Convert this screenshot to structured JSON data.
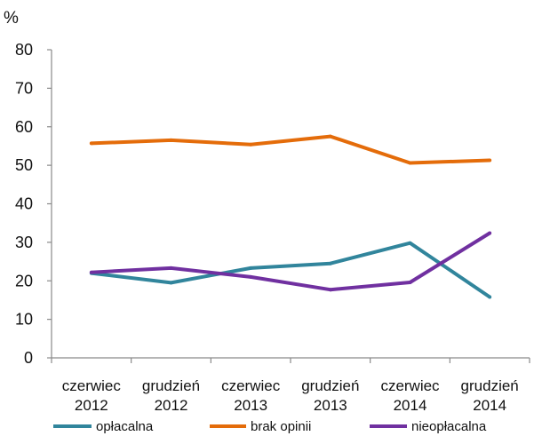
{
  "chart_data": {
    "type": "line",
    "ylabel": "%",
    "ylim": [
      0,
      80
    ],
    "yticks": [
      0,
      10,
      20,
      30,
      40,
      50,
      60,
      70,
      80
    ],
    "grid": false,
    "legend": "bottom",
    "categories": [
      [
        "czerwiec",
        "2012"
      ],
      [
        "grudzień",
        "2012"
      ],
      [
        "czerwiec",
        "2013"
      ],
      [
        "grudzień",
        "2013"
      ],
      [
        "czerwiec",
        "2014"
      ],
      [
        "grudzień",
        "2014"
      ]
    ],
    "series": [
      {
        "name": "opłacalna",
        "color": "#31859c",
        "values": [
          22,
          19.5,
          23.3,
          24.5,
          29.8,
          15.8
        ]
      },
      {
        "name": "brak opinii",
        "color": "#e46c0a",
        "values": [
          55.7,
          56.5,
          55.4,
          57.5,
          50.6,
          51.3
        ]
      },
      {
        "name": "nieopłacalna",
        "color": "#7030a0",
        "values": [
          22.2,
          23.3,
          21,
          17.7,
          19.6,
          32.4
        ]
      }
    ]
  }
}
